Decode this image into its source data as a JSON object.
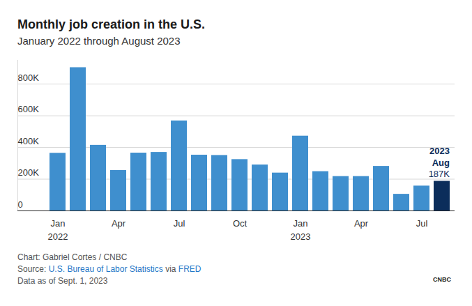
{
  "chart_data": {
    "type": "bar",
    "title": "Monthly job creation in the U.S.",
    "subtitle": "January 2022 through August 2023",
    "categories": [
      "Jan\n2022",
      null,
      null,
      "Apr",
      null,
      null,
      "Jul",
      null,
      null,
      "Oct",
      null,
      null,
      "Jan\n2023",
      null,
      null,
      "Apr",
      null,
      null,
      "Jul",
      null
    ],
    "values": [
      364000,
      904000,
      414000,
      255000,
      365000,
      369000,
      568000,
      352000,
      350000,
      324000,
      290000,
      239000,
      472000,
      248000,
      217000,
      217000,
      281000,
      105000,
      157000,
      187000
    ],
    "colors": [
      "#3f8fce",
      "#3f8fce",
      "#3f8fce",
      "#3f8fce",
      "#3f8fce",
      "#3f8fce",
      "#3f8fce",
      "#3f8fce",
      "#3f8fce",
      "#3f8fce",
      "#3f8fce",
      "#3f8fce",
      "#3f8fce",
      "#3f8fce",
      "#3f8fce",
      "#3f8fce",
      "#3f8fce",
      "#3f8fce",
      "#3f8fce",
      "#0b2d5b"
    ],
    "ylim": [
      0,
      950000
    ],
    "yticks": [
      0,
      {
        "value": 200000,
        "label": "200K"
      },
      {
        "value": 400000,
        "label": "400K"
      },
      {
        "value": 600000,
        "label": "600K"
      },
      {
        "value": 800000,
        "label": "800K"
      }
    ],
    "grid": true,
    "annotation": {
      "text": "2023\nAug",
      "value_label": "187K"
    },
    "credit": "Chart: Gabriel Cortes / CNBC",
    "source": [
      "Source: ",
      "U.S. Bureau of Labor Statistics",
      " via ",
      "FRED"
    ],
    "note": "Data as of Sept. 1, 2023",
    "logo": "CNBC"
  }
}
